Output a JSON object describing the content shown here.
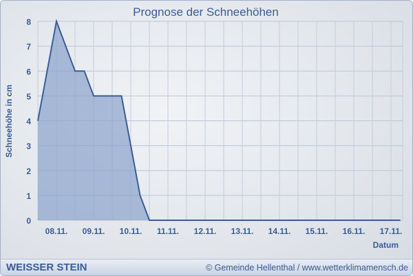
{
  "chart_data": {
    "type": "area",
    "title": "Prognose der Schneehöhen",
    "xlabel": "Datum",
    "ylabel": "Schneehöhe in cm",
    "ylim": [
      0,
      8
    ],
    "yticks": [
      0,
      1,
      2,
      3,
      4,
      5,
      6,
      7,
      8
    ],
    "xtick_labels": [
      "08.11.",
      "09.11.",
      "10.11.",
      "11.11.",
      "12.11.",
      "13.11.",
      "14.11.",
      "15.11.",
      "16.11.",
      "17.11."
    ],
    "grid": true,
    "series": [
      {
        "x": [
          "08.11. 00:00",
          "08.11. 12:00",
          "09.11. 00:00",
          "09.11. 06:00",
          "09.11. 12:00",
          "10.11. 06:00",
          "10.11. 18:00",
          "11.11. 00:00",
          "17.11. 18:00"
        ],
        "values": [
          4,
          8,
          6,
          6,
          5,
          5,
          1,
          0,
          0
        ]
      }
    ],
    "colors": {
      "line": "#3a5c95",
      "fill": "#8aa3cc",
      "text": "#3a5c95"
    }
  },
  "footer": {
    "brand": "WEISSER STEIN",
    "credit": "© Gemeinde Hellenthal / www.wetterklimamensch.de"
  }
}
